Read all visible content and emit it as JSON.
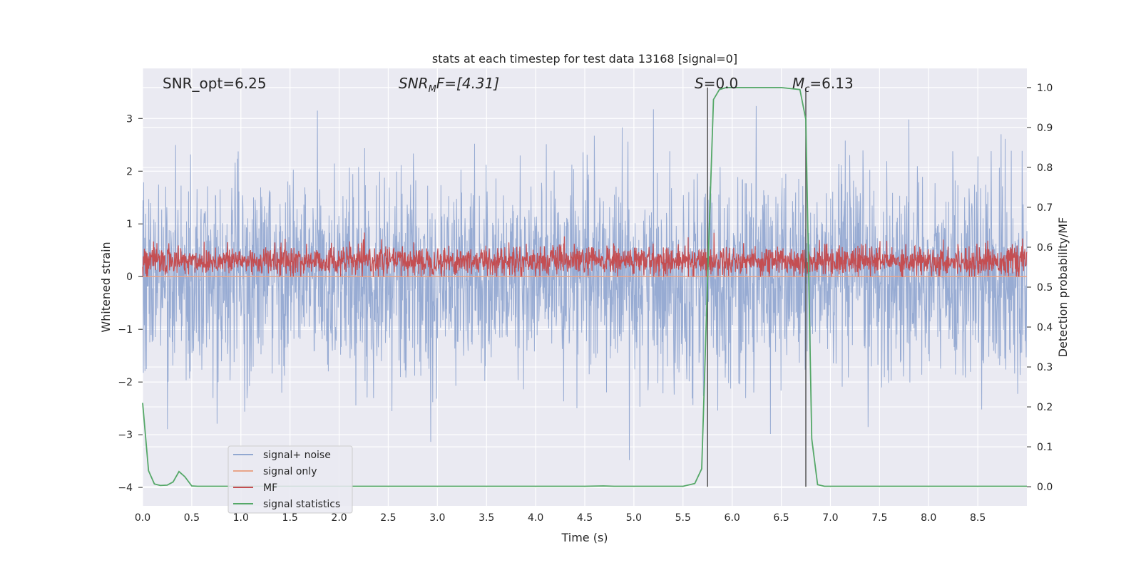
{
  "chart_data": {
    "type": "line",
    "title": "stats at each timestep for test data 13168 [signal=0]",
    "xlabel": "Time (s)",
    "ylabel": "Whitened strain",
    "y2label": "Detection probability/MF",
    "xlim": [
      0,
      9.0
    ],
    "ylim": [
      -4.35,
      3.95
    ],
    "y2lim": [
      -0.048,
      1.048
    ],
    "x_ticks": [
      "0.0",
      "0.5",
      "1.0",
      "1.5",
      "2.0",
      "2.5",
      "3.0",
      "3.5",
      "4.0",
      "4.5",
      "5.0",
      "5.5",
      "6.0",
      "6.5",
      "7.0",
      "7.5",
      "8.0",
      "8.5"
    ],
    "y_ticks": [
      "3",
      "2",
      "1",
      "0",
      "−1",
      "−2",
      "−3",
      "−4"
    ],
    "y2_ticks": [
      "1.0",
      "0.9",
      "0.8",
      "0.7",
      "0.6",
      "0.5",
      "0.4",
      "0.3",
      "0.2",
      "0.1",
      "0.0"
    ],
    "grid": true,
    "legend_position": "lower-left",
    "annotations": {
      "snr_opt": "SNR_opt=6.25",
      "snr_mf_base": "SNR",
      "snr_mf_sub": "M",
      "snr_mf_rest": "F=[4.31]",
      "s_var": "S",
      "s_rest": "=0.0",
      "mc_var": "M",
      "mc_sub": "c",
      "mc_rest": "=6.13"
    },
    "vertical_markers": [
      5.75,
      6.75
    ],
    "series": [
      {
        "name": "signal+ noise",
        "color": "#92a8d1",
        "description_range": [
          -3.6,
          3.5
        ],
        "axis": "left"
      },
      {
        "name": "signal only",
        "color": "#e8a58a",
        "constant": 0,
        "axis": "left"
      },
      {
        "name": "MF",
        "color": "#c44e52",
        "range": [
          0.0,
          1.0
        ],
        "axis": "left"
      },
      {
        "name": "signal statistics",
        "color": "#55a868",
        "axis": "right",
        "x": [
          0.0,
          0.06,
          0.12,
          0.18,
          0.25,
          0.31,
          0.37,
          0.43,
          0.5,
          0.56,
          1.0,
          2.0,
          3.0,
          4.0,
          4.5,
          4.69,
          4.8,
          5.0,
          5.5,
          5.62,
          5.69,
          5.75,
          5.81,
          5.87,
          5.94,
          6.0,
          6.25,
          6.5,
          6.69,
          6.75,
          6.81,
          6.87,
          6.94,
          7.0,
          7.5,
          8.0,
          8.5,
          9.0
        ],
        "y": [
          0.21,
          0.04,
          0.007,
          0.003,
          0.004,
          0.012,
          0.038,
          0.025,
          0.002,
          0.001,
          0.001,
          0.001,
          0.001,
          0.001,
          0.001,
          0.002,
          0.001,
          0.001,
          0.001,
          0.008,
          0.045,
          0.52,
          0.97,
          0.995,
          1.0,
          1.0,
          1.0,
          1.0,
          0.995,
          0.92,
          0.12,
          0.005,
          0.001,
          0.001,
          0.001,
          0.001,
          0.001,
          0.001
        ]
      }
    ]
  }
}
